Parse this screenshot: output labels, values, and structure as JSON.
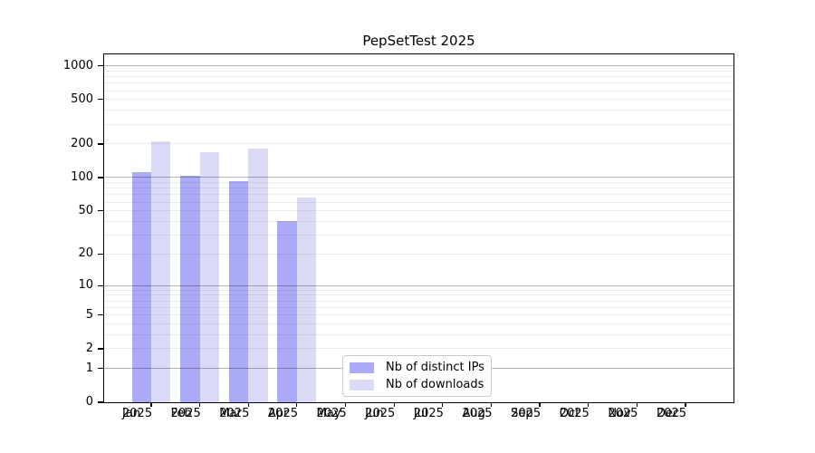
{
  "chart_data": {
    "type": "bar",
    "title": "PepSetTest 2025",
    "categories": [
      "Jan",
      "Feb",
      "Mar",
      "Apr",
      "May",
      "Jun",
      "Jul",
      "Aug",
      "Sep",
      "Oct",
      "Nov",
      "Dec"
    ],
    "category_year": "2025",
    "series": [
      {
        "name": "Nb of distinct IPs",
        "color": "#aaaaf6",
        "values": [
          112,
          104,
          92,
          40,
          0,
          0,
          0,
          0,
          0,
          0,
          0,
          0
        ]
      },
      {
        "name": "Nb of downloads",
        "color": "#dbdbf8",
        "values": [
          210,
          169,
          181,
          66,
          0,
          0,
          0,
          0,
          0,
          0,
          0,
          0
        ]
      }
    ],
    "y_axis": {
      "scale": "log1p",
      "ticks": [
        0,
        1,
        2,
        5,
        10,
        20,
        50,
        100,
        200,
        500,
        1000
      ],
      "major_gridlines": [
        1,
        10,
        100,
        1000
      ],
      "ylim": [
        0,
        1270
      ]
    },
    "x_axis": {
      "tick_label_lines": [
        "month",
        "year"
      ]
    },
    "grid": true,
    "legend": {
      "position": "inside-bottom-center"
    },
    "colors": {
      "bar_distinct_ips": "#aaaaf6",
      "bar_downloads": "#dbdbf8",
      "grid_major": "#b6b6b6",
      "grid_minor": "#ececec",
      "axis": "#000000",
      "legend_border": "#c9c9c9",
      "background": "#ffffff"
    }
  }
}
